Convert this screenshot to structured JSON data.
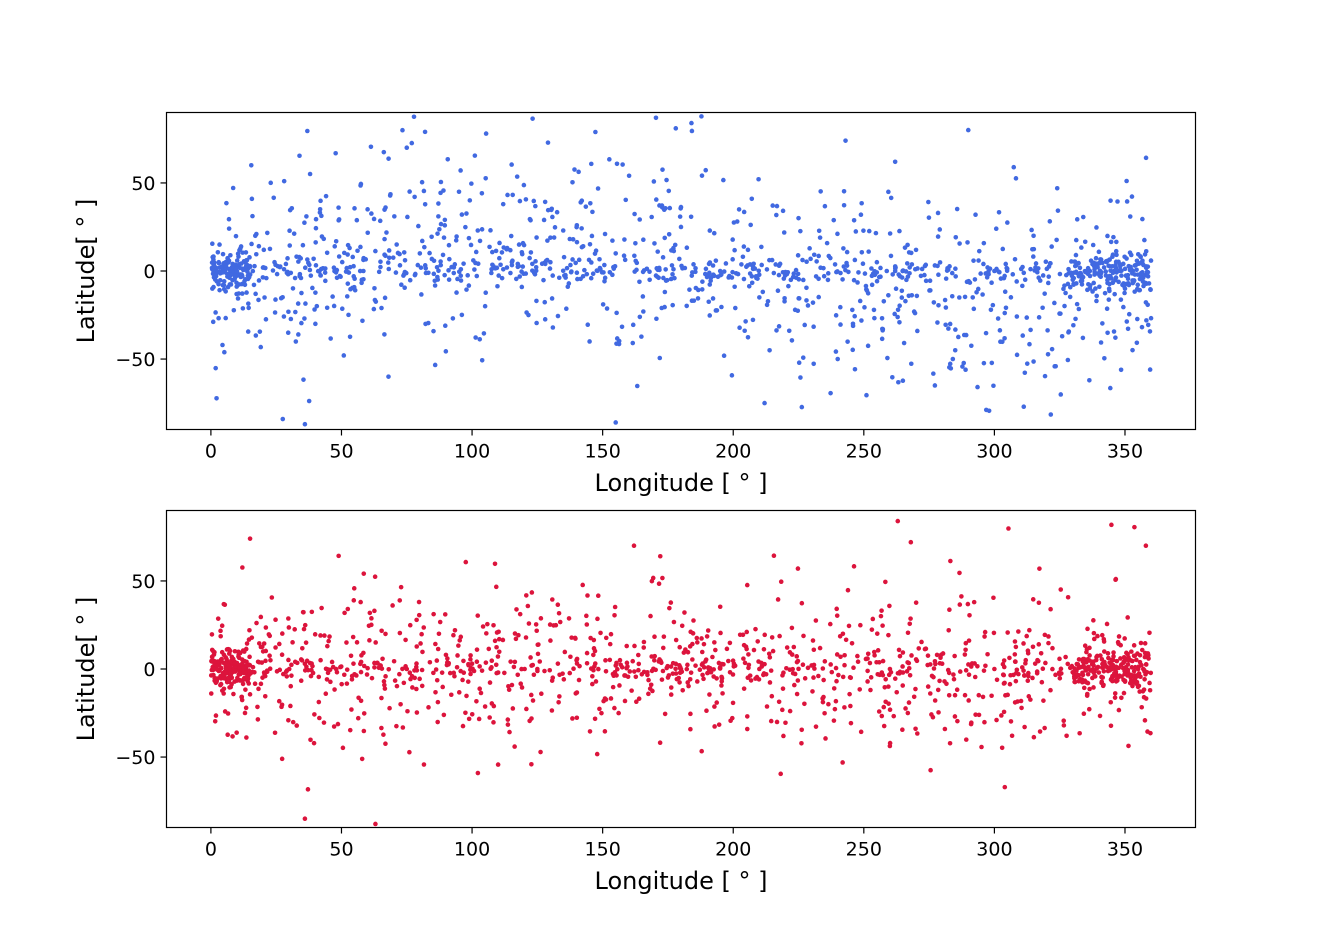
{
  "chart_data": [
    {
      "type": "scatter",
      "title": "",
      "xlabel": "Longitude [$^\\circ$]",
      "xlabel_display": "Longitude [ ° ]",
      "ylabel": "Latitude[$^\\circ$]",
      "ylabel_display": "Latitude[ ° ]",
      "xlim": [
        -17,
        377
      ],
      "ylim": [
        -90,
        90
      ],
      "xticks": [
        0,
        50,
        100,
        150,
        200,
        250,
        300,
        350
      ],
      "yticks": [
        -50,
        0,
        50
      ],
      "xtick_labels": [
        "0",
        "50",
        "100",
        "150",
        "200",
        "250",
        "300",
        "350"
      ],
      "ytick_labels": [
        "−50",
        "0",
        "50"
      ],
      "grid": false,
      "legend": "none",
      "color": "#4169e1",
      "points_shown": "approx. 1500",
      "series": [
        {
          "x": [
            1,
            3,
            5,
            8,
            12,
            17,
            28,
            40,
            52,
            60,
            68,
            80,
            95,
            105,
            118,
            130,
            145,
            155,
            168,
            180,
            195,
            210,
            225,
            240,
            255,
            262,
            270,
            285,
            300,
            315,
            330,
            342,
            350,
            356,
            178,
            184,
            82,
            290,
            243,
            36,
            155,
            75,
            212,
            262
          ],
          "y": [
            0,
            5,
            -8,
            2,
            -3,
            20,
            1,
            -30,
            0,
            35,
            -60,
            10,
            45,
            -20,
            15,
            5,
            -40,
            10,
            -5,
            25,
            0,
            -15,
            30,
            -50,
            5,
            0,
            12,
            -45,
            0,
            20,
            -5,
            2,
            -10,
            8,
            81,
            84,
            79,
            80,
            74,
            -87,
            -86,
            70,
            -75,
            62
          ]
        }
      ]
    },
    {
      "type": "scatter",
      "title": "",
      "xlabel": "Longitude [$^\\circ$]",
      "xlabel_display": "Longitude [ ° ]",
      "ylabel": "Latitude[$^\\circ$]",
      "ylabel_display": "Latitude[ ° ]",
      "xlim": [
        -17,
        377
      ],
      "ylim": [
        -90,
        90
      ],
      "xticks": [
        0,
        50,
        100,
        150,
        200,
        250,
        300,
        350
      ],
      "yticks": [
        -50,
        0,
        50
      ],
      "xtick_labels": [
        "0",
        "50",
        "100",
        "150",
        "200",
        "250",
        "300",
        "350"
      ],
      "ytick_labels": [
        "−50",
        "0",
        "50"
      ],
      "grid": false,
      "legend": "none",
      "color": "#dc143c",
      "points_shown": "approx. 1500",
      "series": [
        {
          "x": [
            1,
            3,
            5,
            8,
            12,
            20,
            30,
            42,
            55,
            65,
            75,
            90,
            100,
            110,
            125,
            140,
            155,
            165,
            180,
            195,
            210,
            230,
            245,
            260,
            265,
            280,
            300,
            312,
            325,
            338,
            345,
            352,
            357,
            263,
            268,
            63,
            36,
            15,
            162,
            358
          ],
          "y": [
            0,
            2,
            8,
            -5,
            3,
            10,
            0,
            5,
            -3,
            2,
            0,
            8,
            3,
            -2,
            0,
            5,
            2,
            -3,
            0,
            1,
            0,
            2,
            -5,
            0,
            -2,
            3,
            0,
            5,
            -3,
            2,
            0,
            -8,
            0,
            84,
            72,
            -88,
            -85,
            74,
            70,
            70
          ]
        }
      ]
    }
  ]
}
